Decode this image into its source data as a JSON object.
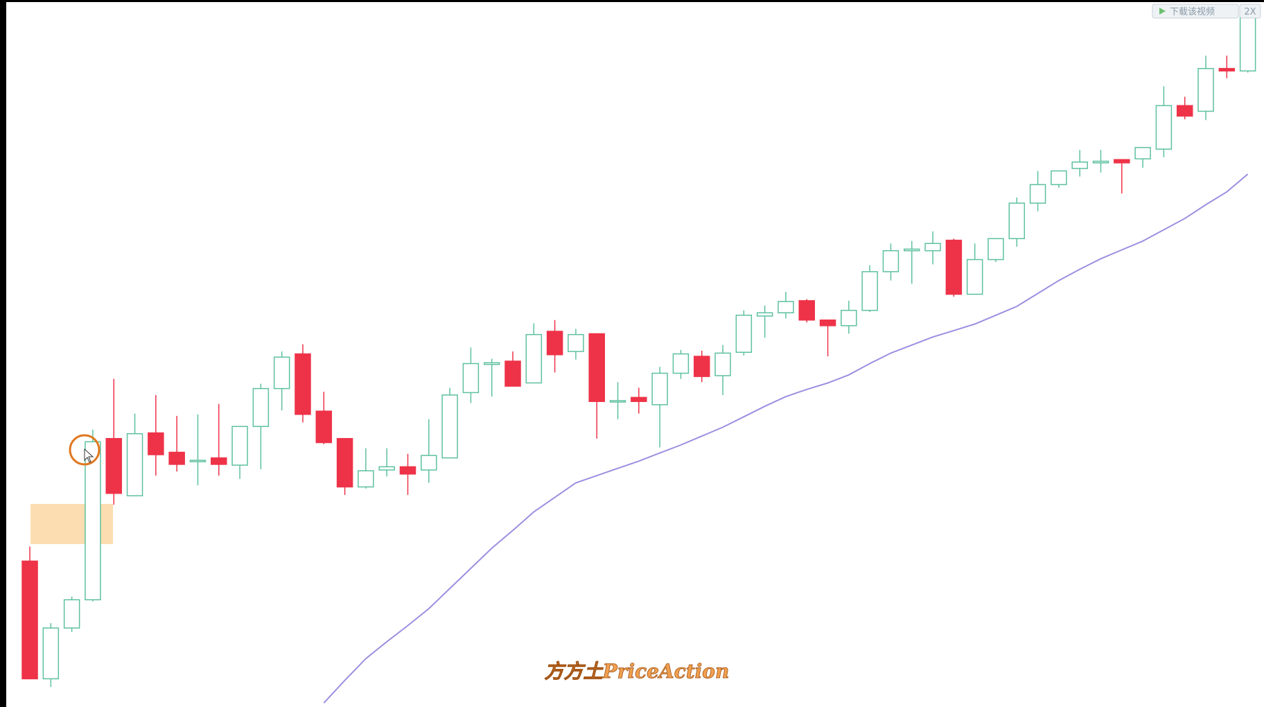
{
  "chart_data": {
    "type": "candlestick",
    "open": [
      181,
      35,
      98,
      133,
      333,
      262,
      340,
      316,
      305,
      309,
      300,
      348,
      395,
      438,
      367,
      333,
      273,
      294,
      298,
      294,
      309,
      390,
      425,
      429,
      402,
      466,
      441,
      463,
      379,
      384,
      375,
      414,
      435,
      411,
      440,
      485,
      489,
      504,
      480,
      473,
      492,
      540,
      566,
      566,
      579,
      512,
      555,
      581,
      625,
      648,
      668,
      675,
      679,
      680,
      692,
      746,
      739,
      792,
      789
    ],
    "high": [
      199,
      104,
      137,
      344,
      407,
      364,
      387,
      361,
      363,
      376,
      348,
      401,
      441,
      450,
      391,
      333,
      321,
      321,
      314,
      357,
      396,
      446,
      432,
      441,
      476,
      480,
      469,
      463,
      403,
      396,
      422,
      443,
      442,
      449,
      492,
      498,
      515,
      506,
      480,
      504,
      548,
      575,
      578,
      590,
      581,
      575,
      581,
      632,
      665,
      665,
      691,
      691,
      679,
      694,
      770,
      757,
      808,
      808,
      867
    ],
    "low": [
      35,
      25,
      93,
      131,
      251,
      262,
      287,
      292,
      275,
      287,
      283,
      295,
      368,
      353,
      326,
      263,
      271,
      286,
      263,
      278,
      309,
      377,
      385,
      398,
      402,
      415,
      431,
      333,
      357,
      364,
      322,
      407,
      403,
      387,
      436,
      458,
      482,
      477,
      435,
      463,
      490,
      529,
      525,
      549,
      509,
      512,
      552,
      571,
      615,
      644,
      658,
      663,
      637,
      669,
      682,
      729,
      728,
      780,
      787
    ],
    "close": [
      35,
      98,
      133,
      329,
      265,
      339,
      313,
      301,
      306,
      301,
      348,
      395,
      434,
      363,
      328,
      273,
      293,
      298,
      289,
      312,
      387,
      426,
      427,
      398,
      462,
      437,
      462,
      379,
      380,
      379,
      414,
      438,
      410,
      439,
      486,
      489,
      503,
      480,
      473,
      492,
      540,
      566,
      568,
      575,
      512,
      555,
      581,
      625,
      648,
      665,
      676,
      677,
      675,
      694,
      746,
      733,
      792,
      789,
      859
    ],
    "up_color": "#5dc0a0",
    "down_color": "#ee3348",
    "ylim": [
      0,
      877
    ],
    "ma": {
      "color": "#9b8fe0",
      "values": [
        null,
        null,
        null,
        null,
        null,
        null,
        null,
        null,
        null,
        null,
        null,
        null,
        null,
        null,
        5,
        33,
        60,
        81,
        101,
        122,
        147,
        172,
        197,
        219,
        242,
        260,
        278,
        287,
        296,
        305,
        315,
        325,
        336,
        347,
        360,
        373,
        385,
        394,
        402,
        412,
        426,
        439,
        449,
        459,
        467,
        475,
        486,
        497,
        513,
        529,
        543,
        556,
        567,
        578,
        592,
        606,
        623,
        639,
        661
      ]
    },
    "watermark": "方方土PriceAction"
  },
  "toolbar": {
    "download": "下载该视频",
    "speed": "2X"
  }
}
